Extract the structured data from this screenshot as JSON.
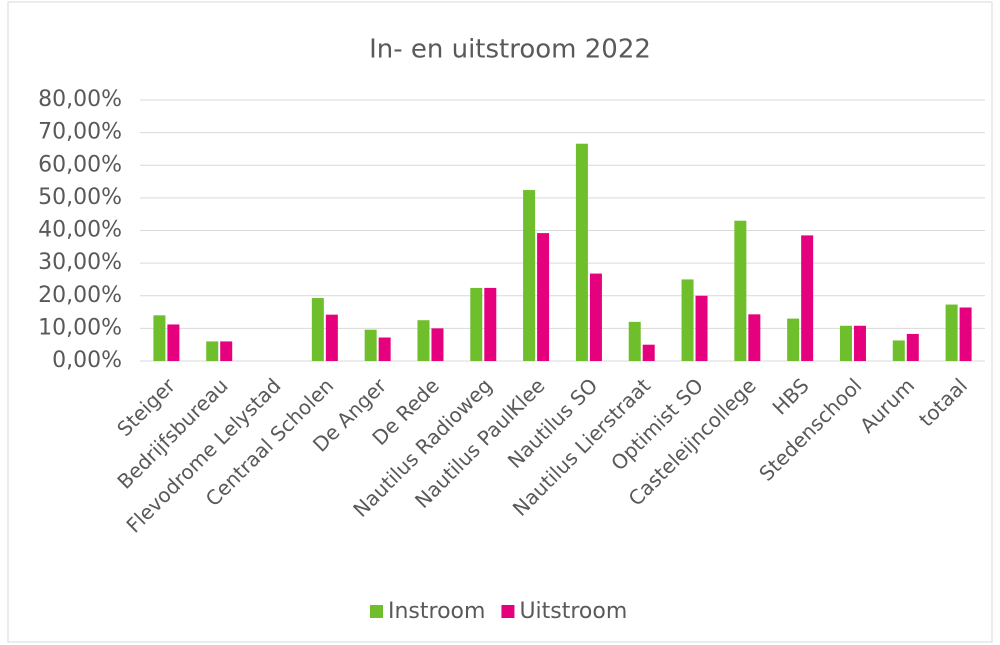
{
  "chart_data": {
    "type": "bar",
    "title": "In- en uitstroom 2022",
    "categories": [
      "Steiger",
      "Bedrijfsbureau",
      "Flevodrome Lelystad",
      "Centraal Scholen",
      "De Anger",
      "De Rede",
      "Nautilus Radioweg",
      "Nautilus PaulKlee",
      "Nautilus SO",
      "Nautilus Lierstraat",
      "Optimist SO",
      "Casteleijncollege",
      "HBS",
      "Stedenschool",
      "Aurum",
      "totaal"
    ],
    "series": [
      {
        "name": "Instroom",
        "color": "#6fbe2c",
        "values": [
          14,
          6,
          0,
          19.3,
          9.6,
          12.5,
          22.4,
          52.4,
          66.6,
          12,
          25,
          43,
          13,
          10.8,
          6.3,
          17.3
        ]
      },
      {
        "name": "Uitstroom",
        "color": "#e5007d",
        "values": [
          11.2,
          6,
          0,
          14.2,
          7.2,
          10,
          22.4,
          39.2,
          26.8,
          5,
          20,
          14.3,
          38.5,
          10.8,
          8.3,
          16.4
        ]
      }
    ],
    "ylim": [
      0,
      80
    ],
    "yticks": [
      {
        "value": 0,
        "label": "0,00%"
      },
      {
        "value": 10,
        "label": "10,00%"
      },
      {
        "value": 20,
        "label": "20,00%"
      },
      {
        "value": 30,
        "label": "30,00%"
      },
      {
        "value": 40,
        "label": "40,00%"
      },
      {
        "value": 50,
        "label": "50,00%"
      },
      {
        "value": 60,
        "label": "60,00%"
      },
      {
        "value": 70,
        "label": "70,00%"
      },
      {
        "value": 80,
        "label": "80,00%"
      }
    ],
    "grid": true,
    "legend": "bottom"
  }
}
